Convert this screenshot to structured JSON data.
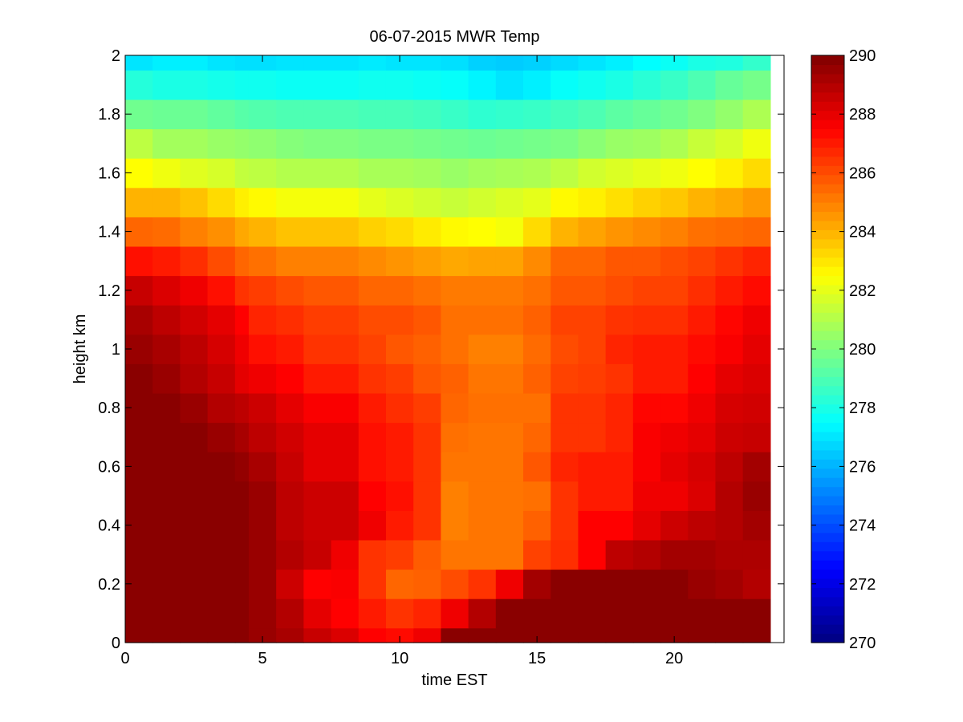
{
  "chart_data": {
    "type": "heatmap",
    "title": "06-07-2015 MWR Temp",
    "xlabel": "time EST",
    "ylabel": "height km",
    "xlim": [
      0,
      23.5
    ],
    "ylim": [
      0,
      2
    ],
    "x_ticks": [
      "0",
      "5",
      "10",
      "15",
      "20"
    ],
    "y_ticks": [
      "0",
      "0.2",
      "0.4",
      "0.6",
      "0.8",
      "1",
      "1.2",
      "1.4",
      "1.6",
      "1.8",
      "2"
    ],
    "colorbar": {
      "min": 270,
      "max": 290,
      "ticks": [
        "270",
        "272",
        "274",
        "276",
        "278",
        "280",
        "282",
        "284",
        "286",
        "288",
        "290"
      ],
      "colormap": "jet"
    },
    "x_edges": [
      0,
      1,
      2,
      3,
      4,
      4.5,
      5.5,
      6.5,
      7.5,
      8.5,
      9.5,
      10.5,
      11.5,
      12.5,
      13.5,
      14.5,
      15.5,
      16.5,
      17.5,
      18.5,
      19.5,
      20.5,
      21.5,
      22.5,
      23.5
    ],
    "y_edges": [
      0,
      0.05,
      0.15,
      0.25,
      0.35,
      0.45,
      0.55,
      0.65,
      0.75,
      0.85,
      0.95,
      1.05,
      1.15,
      1.25,
      1.35,
      1.45,
      1.55,
      1.65,
      1.75,
      1.85,
      1.95,
      2.0
    ],
    "z_rows": [
      [
        289.8,
        289.8,
        289.8,
        289.8,
        289.8,
        289.5,
        289.2,
        288.6,
        288.2,
        287.5,
        287.3,
        287.8,
        289.8,
        289.8,
        289.8,
        289.8,
        289.8,
        289.8,
        289.8,
        289.8,
        289.8,
        289.8,
        289.8,
        289.8
      ],
      [
        289.8,
        289.8,
        289.8,
        289.8,
        289.8,
        289.5,
        289.0,
        288.0,
        287.5,
        287.0,
        286.5,
        286.8,
        287.8,
        289.0,
        289.8,
        289.8,
        289.8,
        289.8,
        289.8,
        289.8,
        289.8,
        289.8,
        289.8,
        289.8
      ],
      [
        289.8,
        289.8,
        289.8,
        289.8,
        289.8,
        289.5,
        288.5,
        287.5,
        287.6,
        286.5,
        285.5,
        285.6,
        286.0,
        286.5,
        287.8,
        289.3,
        289.8,
        289.8,
        289.8,
        289.8,
        289.8,
        289.5,
        289.3,
        289.0
      ],
      [
        289.8,
        289.8,
        289.8,
        289.8,
        289.8,
        289.5,
        289.0,
        288.6,
        287.8,
        286.5,
        286.3,
        285.7,
        285.2,
        285.2,
        285.2,
        286.2,
        286.6,
        287.5,
        288.8,
        289.0,
        289.3,
        289.3,
        289.1,
        289.1
      ],
      [
        289.8,
        289.8,
        289.8,
        289.8,
        289.8,
        289.5,
        288.8,
        288.5,
        288.5,
        287.8,
        287.0,
        286.5,
        285.0,
        285.2,
        285.2,
        285.6,
        286.5,
        287.5,
        287.5,
        288.0,
        288.5,
        288.8,
        289.0,
        289.3
      ],
      [
        289.8,
        289.8,
        289.8,
        289.8,
        289.8,
        289.5,
        288.8,
        288.5,
        288.5,
        287.5,
        287.2,
        286.5,
        285.0,
        285.2,
        285.2,
        285.3,
        286.5,
        287.0,
        287.0,
        287.8,
        287.8,
        288.2,
        289.0,
        289.5
      ],
      [
        289.8,
        289.8,
        289.8,
        289.8,
        289.6,
        289.2,
        288.6,
        288.0,
        288.0,
        287.2,
        287.0,
        286.5,
        285.2,
        285.2,
        285.2,
        285.8,
        286.8,
        287.0,
        287.0,
        287.6,
        288.0,
        288.3,
        288.8,
        289.3
      ],
      [
        289.8,
        289.8,
        289.8,
        289.5,
        289.2,
        288.8,
        288.4,
        288.0,
        288.0,
        287.2,
        287.0,
        286.5,
        285.3,
        285.2,
        285.2,
        285.5,
        286.5,
        286.5,
        286.8,
        287.6,
        287.8,
        288.0,
        288.5,
        288.6
      ],
      [
        289.8,
        289.8,
        289.5,
        289.0,
        288.8,
        288.5,
        288.0,
        287.6,
        287.6,
        287.0,
        286.6,
        286.3,
        285.5,
        285.3,
        285.3,
        285.3,
        286.5,
        286.5,
        286.8,
        287.4,
        287.4,
        287.8,
        288.3,
        288.4
      ],
      [
        289.8,
        289.5,
        289.0,
        288.6,
        288.0,
        287.8,
        287.5,
        287.0,
        287.0,
        286.5,
        286.3,
        285.8,
        285.6,
        285.2,
        285.2,
        285.6,
        286.2,
        286.3,
        286.5,
        287.0,
        287.0,
        287.5,
        288.0,
        288.2
      ],
      [
        289.5,
        289.2,
        288.8,
        288.3,
        287.8,
        287.2,
        287.0,
        286.5,
        286.5,
        286.2,
        285.8,
        285.6,
        285.3,
        285.0,
        285.0,
        285.4,
        286.0,
        286.2,
        286.8,
        287.0,
        287.0,
        287.3,
        287.6,
        288.0
      ],
      [
        289.2,
        288.8,
        288.4,
        288.0,
        287.5,
        286.8,
        286.6,
        286.3,
        286.3,
        286.0,
        286.0,
        285.8,
        285.3,
        285.3,
        285.3,
        285.6,
        286.2,
        286.2,
        286.5,
        286.6,
        286.6,
        287.0,
        287.4,
        287.8
      ],
      [
        288.6,
        288.2,
        287.8,
        287.2,
        286.5,
        286.3,
        286.0,
        285.8,
        285.8,
        285.5,
        285.5,
        285.3,
        285.1,
        285.1,
        285.1,
        285.3,
        285.8,
        285.8,
        286.0,
        286.2,
        286.2,
        286.6,
        287.0,
        287.3
      ],
      [
        287.2,
        287.0,
        286.6,
        286.0,
        285.5,
        285.3,
        285.0,
        285.0,
        285.0,
        284.8,
        284.6,
        284.4,
        284.2,
        284.3,
        284.3,
        284.8,
        285.5,
        285.5,
        285.8,
        285.8,
        286.0,
        286.2,
        286.5,
        286.8
      ],
      [
        285.5,
        285.4,
        285.0,
        284.7,
        284.2,
        284.0,
        283.7,
        283.7,
        283.7,
        283.4,
        283.2,
        282.9,
        282.6,
        282.5,
        282.3,
        283.2,
        284.0,
        284.3,
        284.6,
        284.8,
        285.0,
        285.3,
        285.4,
        285.5
      ],
      [
        284.0,
        284.0,
        283.7,
        283.2,
        282.8,
        282.6,
        282.3,
        282.3,
        282.3,
        282.0,
        281.8,
        281.6,
        281.4,
        281.6,
        281.8,
        282.0,
        282.6,
        282.8,
        283.1,
        283.4,
        283.6,
        284.0,
        284.2,
        284.5
      ],
      [
        282.5,
        282.2,
        281.9,
        281.7,
        281.3,
        281.2,
        281.0,
        281.0,
        281.0,
        280.8,
        280.8,
        280.7,
        280.5,
        280.7,
        280.8,
        280.9,
        281.2,
        281.6,
        281.8,
        282.0,
        282.2,
        282.5,
        282.8,
        283.2
      ],
      [
        281.2,
        280.7,
        280.7,
        280.5,
        280.4,
        280.3,
        280.1,
        280.0,
        280.0,
        279.9,
        279.9,
        279.8,
        279.7,
        279.6,
        279.7,
        279.8,
        279.9,
        280.2,
        280.5,
        280.6,
        280.9,
        281.4,
        281.7,
        282.2
      ],
      [
        279.7,
        279.6,
        279.6,
        279.4,
        279.2,
        279.1,
        279.0,
        279.0,
        279.0,
        278.9,
        278.9,
        278.8,
        278.6,
        278.4,
        278.5,
        278.6,
        278.8,
        279.0,
        279.3,
        279.5,
        279.7,
        280.0,
        280.4,
        280.9
      ],
      [
        278.2,
        278.0,
        278.0,
        277.9,
        277.8,
        277.8,
        277.7,
        277.7,
        277.7,
        277.8,
        277.8,
        277.7,
        277.6,
        277.3,
        277.0,
        277.2,
        277.6,
        277.8,
        278.0,
        278.3,
        278.6,
        279.0,
        279.5,
        279.8
      ],
      [
        277.0,
        277.2,
        277.2,
        277.0,
        276.9,
        276.9,
        277.0,
        277.0,
        277.0,
        277.1,
        277.0,
        277.0,
        276.9,
        276.6,
        276.5,
        276.6,
        276.8,
        277.0,
        277.2,
        277.5,
        277.7,
        278.0,
        278.1,
        278.5
      ]
    ]
  }
}
